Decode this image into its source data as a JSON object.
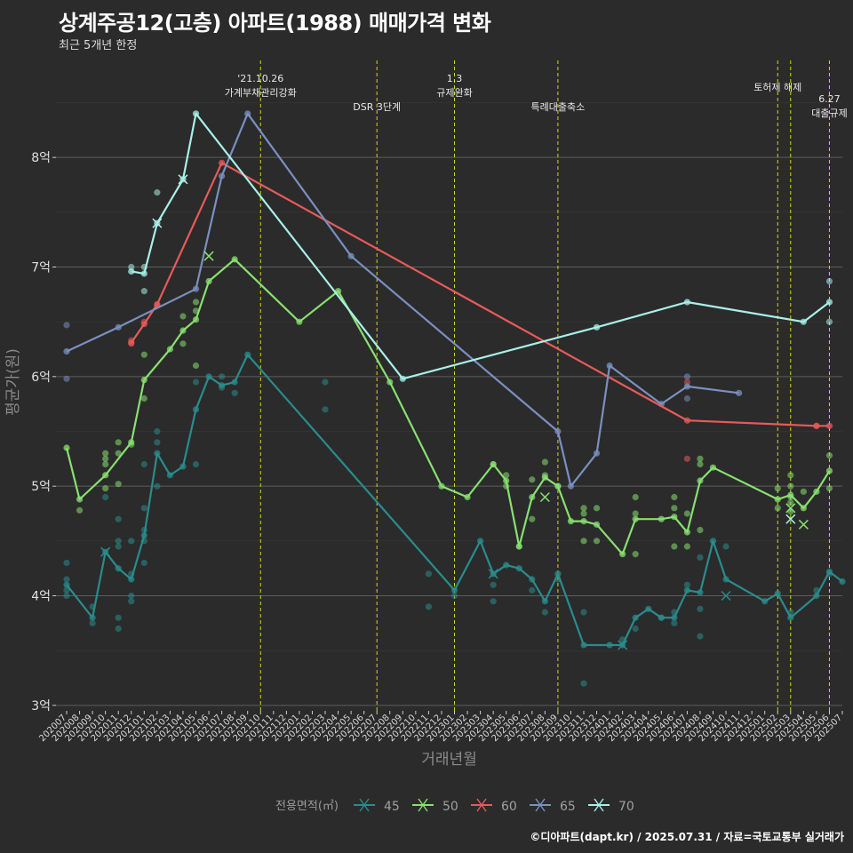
{
  "header": {
    "title": "상계주공12(고층) 아파트(1988) 매매가격 변화",
    "subtitle": "최근 5개년 한정"
  },
  "footer": {
    "credit": "©디아파트(dapt.kr) / 2025.07.31 / 자료=국토교통부 실거래가"
  },
  "chart_data": {
    "type": "line",
    "title": "상계주공12(고층) 아파트(1988) 매매가격 변화",
    "subtitle": "최근 5개년 한정",
    "xlabel": "거래년월",
    "ylabel": "평균가(원)",
    "ylim": [
      2.95,
      8.95
    ],
    "y_ticks": [
      3,
      4,
      5,
      6,
      7,
      8
    ],
    "y_tick_labels": [
      "3억",
      "4억",
      "5억",
      "6억",
      "7억",
      "8억"
    ],
    "grid": true,
    "legend_position": "bottom",
    "legend_title": "전용면적(㎡)",
    "categories": [
      "202007",
      "202008",
      "202009",
      "202010",
      "202011",
      "202012",
      "202101",
      "202102",
      "202103",
      "202104",
      "202105",
      "202106",
      "202107",
      "202108",
      "202109",
      "202110",
      "202111",
      "202112",
      "202201",
      "202202",
      "202203",
      "202204",
      "202205",
      "202206",
      "202207",
      "202208",
      "202209",
      "202210",
      "202211",
      "202212",
      "202301",
      "202302",
      "202303",
      "202304",
      "202305",
      "202306",
      "202307",
      "202308",
      "202309",
      "202310",
      "202311",
      "202312",
      "202401",
      "202402",
      "202403",
      "202404",
      "202405",
      "202406",
      "202407",
      "202408",
      "202409",
      "202410",
      "202411",
      "202412",
      "202501",
      "202502",
      "202503",
      "202504",
      "202505",
      "202506",
      "202507"
    ],
    "series": [
      {
        "name": "45",
        "color": "#2a8c8c",
        "line": [
          [
            "202007",
            4.1
          ],
          [
            "202009",
            3.8
          ],
          [
            "202010",
            4.4
          ],
          [
            "202011",
            4.25
          ],
          [
            "202012",
            4.15
          ],
          [
            "202101",
            4.55
          ],
          [
            "202102",
            5.3
          ],
          [
            "202103",
            5.1
          ],
          [
            "202104",
            5.18
          ],
          [
            "202105",
            5.7
          ],
          [
            "202106",
            6.0
          ],
          [
            "202107",
            5.92
          ],
          [
            "202108",
            5.95
          ],
          [
            "202109",
            6.2
          ],
          [
            "202301",
            4.05
          ],
          [
            "202303",
            4.5
          ],
          [
            "202304",
            4.2
          ],
          [
            "202305",
            4.28
          ],
          [
            "202306",
            4.25
          ],
          [
            "202307",
            4.15
          ],
          [
            "202308",
            3.95
          ],
          [
            "202309",
            4.2
          ],
          [
            "202311",
            3.55
          ],
          [
            "202401",
            3.55
          ],
          [
            "202402",
            3.55
          ],
          [
            "202403",
            3.8
          ],
          [
            "202404",
            3.88
          ],
          [
            "202405",
            3.8
          ],
          [
            "202406",
            3.8
          ],
          [
            "202407",
            4.05
          ],
          [
            "202408",
            4.03
          ],
          [
            "202409",
            4.5
          ],
          [
            "202410",
            4.15
          ],
          [
            "202501",
            3.95
          ],
          [
            "202502",
            4.02
          ],
          [
            "202503",
            3.8
          ],
          [
            "202505",
            4.0
          ],
          [
            "202506",
            4.22
          ],
          [
            "202507",
            4.13
          ]
        ],
        "points": [
          [
            "202007",
            4.3
          ],
          [
            "202007",
            4.15
          ],
          [
            "202007",
            4.05
          ],
          [
            "202007",
            4.0
          ],
          [
            "202009",
            3.75
          ],
          [
            "202009",
            3.9
          ],
          [
            "202010",
            4.9
          ],
          [
            "202011",
            4.7
          ],
          [
            "202011",
            4.5
          ],
          [
            "202011",
            4.45
          ],
          [
            "202011",
            3.8
          ],
          [
            "202011",
            3.7
          ],
          [
            "202012",
            4.5
          ],
          [
            "202012",
            4.2
          ],
          [
            "202012",
            4.0
          ],
          [
            "202012",
            3.95
          ],
          [
            "202101",
            5.2
          ],
          [
            "202101",
            4.8
          ],
          [
            "202101",
            4.6
          ],
          [
            "202101",
            4.5
          ],
          [
            "202101",
            4.3
          ],
          [
            "202102",
            5.5
          ],
          [
            "202102",
            5.4
          ],
          [
            "202102",
            5.0
          ],
          [
            "202105",
            5.95
          ],
          [
            "202105",
            5.2
          ],
          [
            "202107",
            6.0
          ],
          [
            "202107",
            5.9
          ],
          [
            "202108",
            5.85
          ],
          [
            "202203",
            5.95
          ],
          [
            "202203",
            5.7
          ],
          [
            "202211",
            4.2
          ],
          [
            "202211",
            3.9
          ],
          [
            "202301",
            4.0
          ],
          [
            "202304",
            4.1
          ],
          [
            "202304",
            3.95
          ],
          [
            "202307",
            4.05
          ],
          [
            "202308",
            3.85
          ],
          [
            "202309",
            4.15
          ],
          [
            "202311",
            3.85
          ],
          [
            "202311",
            3.2
          ],
          [
            "202402",
            3.6
          ],
          [
            "202403",
            3.7
          ],
          [
            "202405",
            3.8
          ],
          [
            "202406",
            3.85
          ],
          [
            "202406",
            3.75
          ],
          [
            "202407",
            4.1
          ],
          [
            "202408",
            4.35
          ],
          [
            "202408",
            3.88
          ],
          [
            "202408",
            3.63
          ],
          [
            "202410",
            4.45
          ],
          [
            "202503",
            3.85
          ],
          [
            "202505",
            4.05
          ],
          [
            "202506",
            4.2
          ]
        ],
        "x_marks": [
          [
            "202010",
            4.4
          ],
          [
            "202402",
            3.55
          ],
          [
            "202410",
            4.0
          ],
          [
            "202304",
            4.2
          ]
        ]
      },
      {
        "name": "50",
        "color": "#88e070",
        "line": [
          [
            "202007",
            5.35
          ],
          [
            "202008",
            4.88
          ],
          [
            "202010",
            5.1
          ],
          [
            "202012",
            5.4
          ],
          [
            "202101",
            5.97
          ],
          [
            "202103",
            6.25
          ],
          [
            "202104",
            6.42
          ],
          [
            "202105",
            6.52
          ],
          [
            "202106",
            6.87
          ],
          [
            "202108",
            7.07
          ],
          [
            "202201",
            6.5
          ],
          [
            "202204",
            6.78
          ],
          [
            "202208",
            5.95
          ],
          [
            "202212",
            5.0
          ],
          [
            "202302",
            4.9
          ],
          [
            "202304",
            5.2
          ],
          [
            "202305",
            5.05
          ],
          [
            "202306",
            4.45
          ],
          [
            "202307",
            4.9
          ],
          [
            "202308",
            5.08
          ],
          [
            "202309",
            5.0
          ],
          [
            "202310",
            4.68
          ],
          [
            "202311",
            4.68
          ],
          [
            "202312",
            4.65
          ],
          [
            "202402",
            4.38
          ],
          [
            "202403",
            4.7
          ],
          [
            "202405",
            4.7
          ],
          [
            "202406",
            4.72
          ],
          [
            "202407",
            4.58
          ],
          [
            "202408",
            5.05
          ],
          [
            "202409",
            5.17
          ],
          [
            "202502",
            4.88
          ],
          [
            "202503",
            4.92
          ],
          [
            "202504",
            4.8
          ],
          [
            "202505",
            4.95
          ],
          [
            "202506",
            5.14
          ]
        ],
        "points": [
          [
            "202008",
            4.78
          ],
          [
            "202010",
            5.3
          ],
          [
            "202010",
            5.25
          ],
          [
            "202010",
            5.2
          ],
          [
            "202010",
            4.98
          ],
          [
            "202011",
            5.4
          ],
          [
            "202011",
            5.3
          ],
          [
            "202011",
            5.02
          ],
          [
            "202012",
            5.38
          ],
          [
            "202101",
            6.2
          ],
          [
            "202101",
            5.8
          ],
          [
            "202104",
            6.55
          ],
          [
            "202104",
            6.3
          ],
          [
            "202105",
            6.68
          ],
          [
            "202105",
            6.6
          ],
          [
            "202105",
            6.1
          ],
          [
            "202304",
            5.2
          ],
          [
            "202305",
            5.1
          ],
          [
            "202305",
            5.0
          ],
          [
            "202306",
            4.45
          ],
          [
            "202307",
            5.06
          ],
          [
            "202307",
            4.7
          ],
          [
            "202308",
            5.22
          ],
          [
            "202308",
            5.1
          ],
          [
            "202309",
            5.0
          ],
          [
            "202311",
            4.8
          ],
          [
            "202311",
            4.75
          ],
          [
            "202311",
            4.5
          ],
          [
            "202312",
            4.8
          ],
          [
            "202312",
            4.5
          ],
          [
            "202403",
            4.9
          ],
          [
            "202403",
            4.75
          ],
          [
            "202403",
            4.38
          ],
          [
            "202406",
            4.9
          ],
          [
            "202406",
            4.8
          ],
          [
            "202406",
            4.45
          ],
          [
            "202407",
            4.75
          ],
          [
            "202407",
            4.45
          ],
          [
            "202408",
            5.25
          ],
          [
            "202408",
            5.2
          ],
          [
            "202408",
            4.6
          ],
          [
            "202502",
            4.98
          ],
          [
            "202502",
            4.8
          ],
          [
            "202503",
            5.1
          ],
          [
            "202503",
            5.0
          ],
          [
            "202503",
            4.9
          ],
          [
            "202503",
            4.85
          ],
          [
            "202503",
            4.77
          ],
          [
            "202504",
            4.95
          ],
          [
            "202506",
            5.28
          ],
          [
            "202506",
            4.98
          ]
        ],
        "x_marks": [
          [
            "202106",
            7.1
          ],
          [
            "202308",
            4.9
          ],
          [
            "202503",
            4.8
          ],
          [
            "202504",
            4.65
          ]
        ]
      },
      {
        "name": "60",
        "color": "#e85a5a",
        "line": [
          [
            "202012",
            6.31
          ],
          [
            "202101",
            6.48
          ],
          [
            "202102",
            6.66
          ],
          [
            "202107",
            7.95
          ],
          [
            "202407",
            5.6
          ],
          [
            "202505",
            5.55
          ],
          [
            "202506",
            5.55
          ]
        ],
        "points": [
          [
            "202012",
            6.3
          ],
          [
            "202012",
            6.33
          ],
          [
            "202101",
            6.5
          ],
          [
            "202102",
            6.65
          ],
          [
            "202407",
            5.95
          ],
          [
            "202407",
            5.25
          ],
          [
            "202505",
            5.55
          ]
        ],
        "x_marks": []
      },
      {
        "name": "65",
        "color": "#7a90c0",
        "line": [
          [
            "202007",
            6.23
          ],
          [
            "202011",
            6.45
          ],
          [
            "202105",
            6.8
          ],
          [
            "202107",
            7.83
          ],
          [
            "202109",
            8.4
          ],
          [
            "202205",
            7.1
          ],
          [
            "202309",
            5.5
          ],
          [
            "202310",
            5.0
          ],
          [
            "202312",
            5.3
          ],
          [
            "202401",
            6.1
          ],
          [
            "202405",
            5.75
          ],
          [
            "202407",
            5.91
          ],
          [
            "202411",
            5.85
          ]
        ],
        "points": [
          [
            "202007",
            6.47
          ],
          [
            "202007",
            5.98
          ],
          [
            "202407",
            6.0
          ],
          [
            "202407",
            5.8
          ]
        ],
        "x_marks": []
      },
      {
        "name": "70",
        "color": "#a8f0e8",
        "line": [
          [
            "202012",
            6.96
          ],
          [
            "202101",
            6.94
          ],
          [
            "202102",
            7.4
          ],
          [
            "202104",
            7.8
          ],
          [
            "202105",
            8.4
          ],
          [
            "202209",
            5.98
          ],
          [
            "202312",
            6.45
          ],
          [
            "202407",
            6.68
          ],
          [
            "202504",
            6.5
          ],
          [
            "202506",
            6.68
          ]
        ],
        "points": [
          [
            "202012",
            7.0
          ],
          [
            "202101",
            7.0
          ],
          [
            "202101",
            6.78
          ],
          [
            "202102",
            7.68
          ],
          [
            "202506",
            6.87
          ],
          [
            "202506",
            6.5
          ]
        ],
        "x_marks": [
          [
            "202102",
            7.4
          ],
          [
            "202104",
            7.8
          ],
          [
            "202503",
            4.7
          ]
        ]
      }
    ],
    "vlines": [
      {
        "x": "202110",
        "label": "'21.10.26\n가계부채관리강화"
      },
      {
        "x": "202207",
        "label": "DSR 3단계"
      },
      {
        "x": "202301",
        "label": "1.3\n규제완화"
      },
      {
        "x": "202309",
        "label": "특례대출축소"
      },
      {
        "x": "202502",
        "label": "토허제 해제"
      },
      {
        "x": "202503",
        "label": ""
      },
      {
        "x": "202506",
        "label": "6.27\n대출규제"
      }
    ]
  }
}
